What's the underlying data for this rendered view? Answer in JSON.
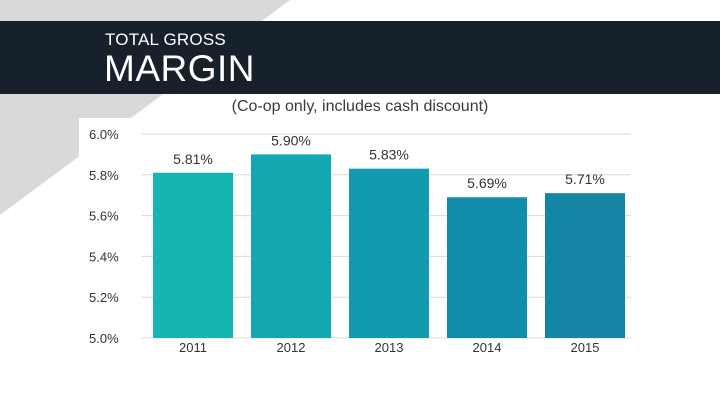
{
  "slide": {
    "title_small": "TOTAL GROSS",
    "title_large": "MARGIN",
    "subtitle": "(Co-op only, includes cash discount)",
    "colors": {
      "title_bar": "#17212b",
      "background_triangle": "#d9d9d9"
    }
  },
  "chart_data": {
    "type": "bar",
    "categories": [
      "2011",
      "2012",
      "2013",
      "2014",
      "2015"
    ],
    "values": [
      5.81,
      5.9,
      5.83,
      5.69,
      5.71
    ],
    "value_labels": [
      "5.81%",
      "5.90%",
      "5.83%",
      "5.69%",
      "5.71%"
    ],
    "yticks": [
      "6.0%",
      "5.8%",
      "5.6%",
      "5.4%",
      "5.2%",
      "5.0%"
    ],
    "ytick_values": [
      6.0,
      5.8,
      5.6,
      5.4,
      5.2,
      5.0
    ],
    "ylim": [
      5.0,
      6.0
    ],
    "grid": true,
    "bar_colors": [
      "#16b5b2",
      "#13a8b1",
      "#129aaf",
      "#118dab",
      "#1585a6"
    ]
  }
}
